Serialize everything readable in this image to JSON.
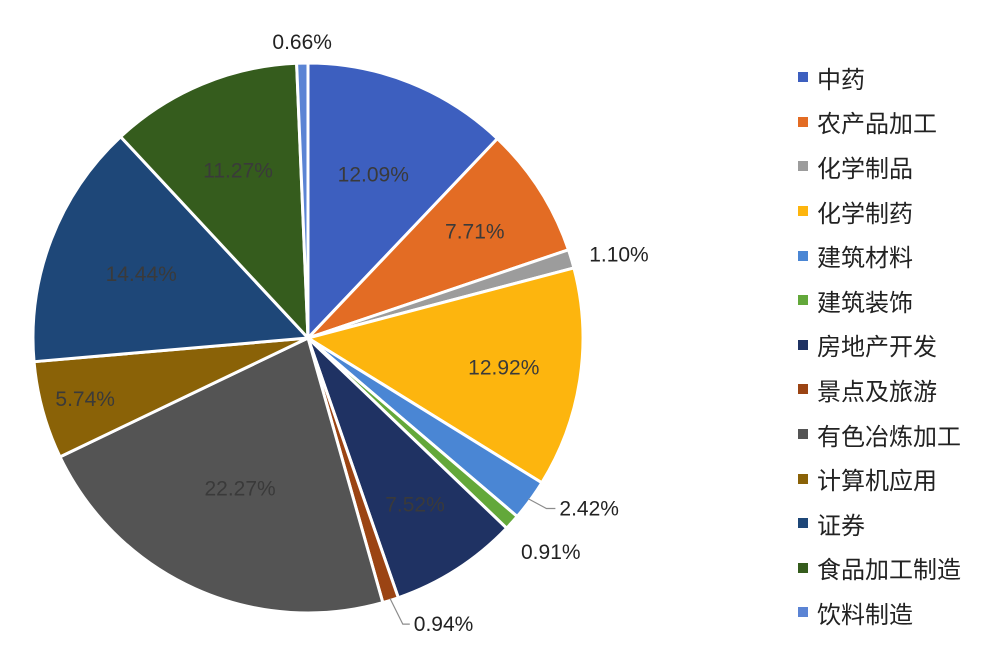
{
  "chart_data": {
    "type": "pie",
    "categories": [
      "中药",
      "农产品加工",
      "化学制品",
      "化学制药",
      "建筑材料",
      "建筑装饰",
      "房地产开发",
      "景点及旅游",
      "有色冶炼加工",
      "计算机应用",
      "证券",
      "食品加工制造",
      "饮料制造"
    ],
    "values": [
      12.09,
      7.71,
      1.1,
      12.92,
      2.42,
      0.91,
      7.52,
      0.94,
      22.27,
      5.74,
      14.44,
      11.27,
      0.66
    ],
    "data_labels": [
      "12.09%",
      "7.71%",
      "1.10%",
      "12.92%",
      "2.42%",
      "0.91%",
      "7.52%",
      "0.94%",
      "22.27%",
      "5.74%",
      "14.44%",
      "11.27%",
      "0.66%"
    ],
    "colors": [
      "#3d5fbf",
      "#e36c24",
      "#9c9c9c",
      "#fdb50e",
      "#4a86d4",
      "#63a83a",
      "#1f3263",
      "#9b4413",
      "#545454",
      "#8a6207",
      "#1e4778",
      "#355c1d",
      "#5b84d4"
    ],
    "legend_position": "right",
    "start_angle_deg": 0,
    "direction": "clockwise"
  }
}
